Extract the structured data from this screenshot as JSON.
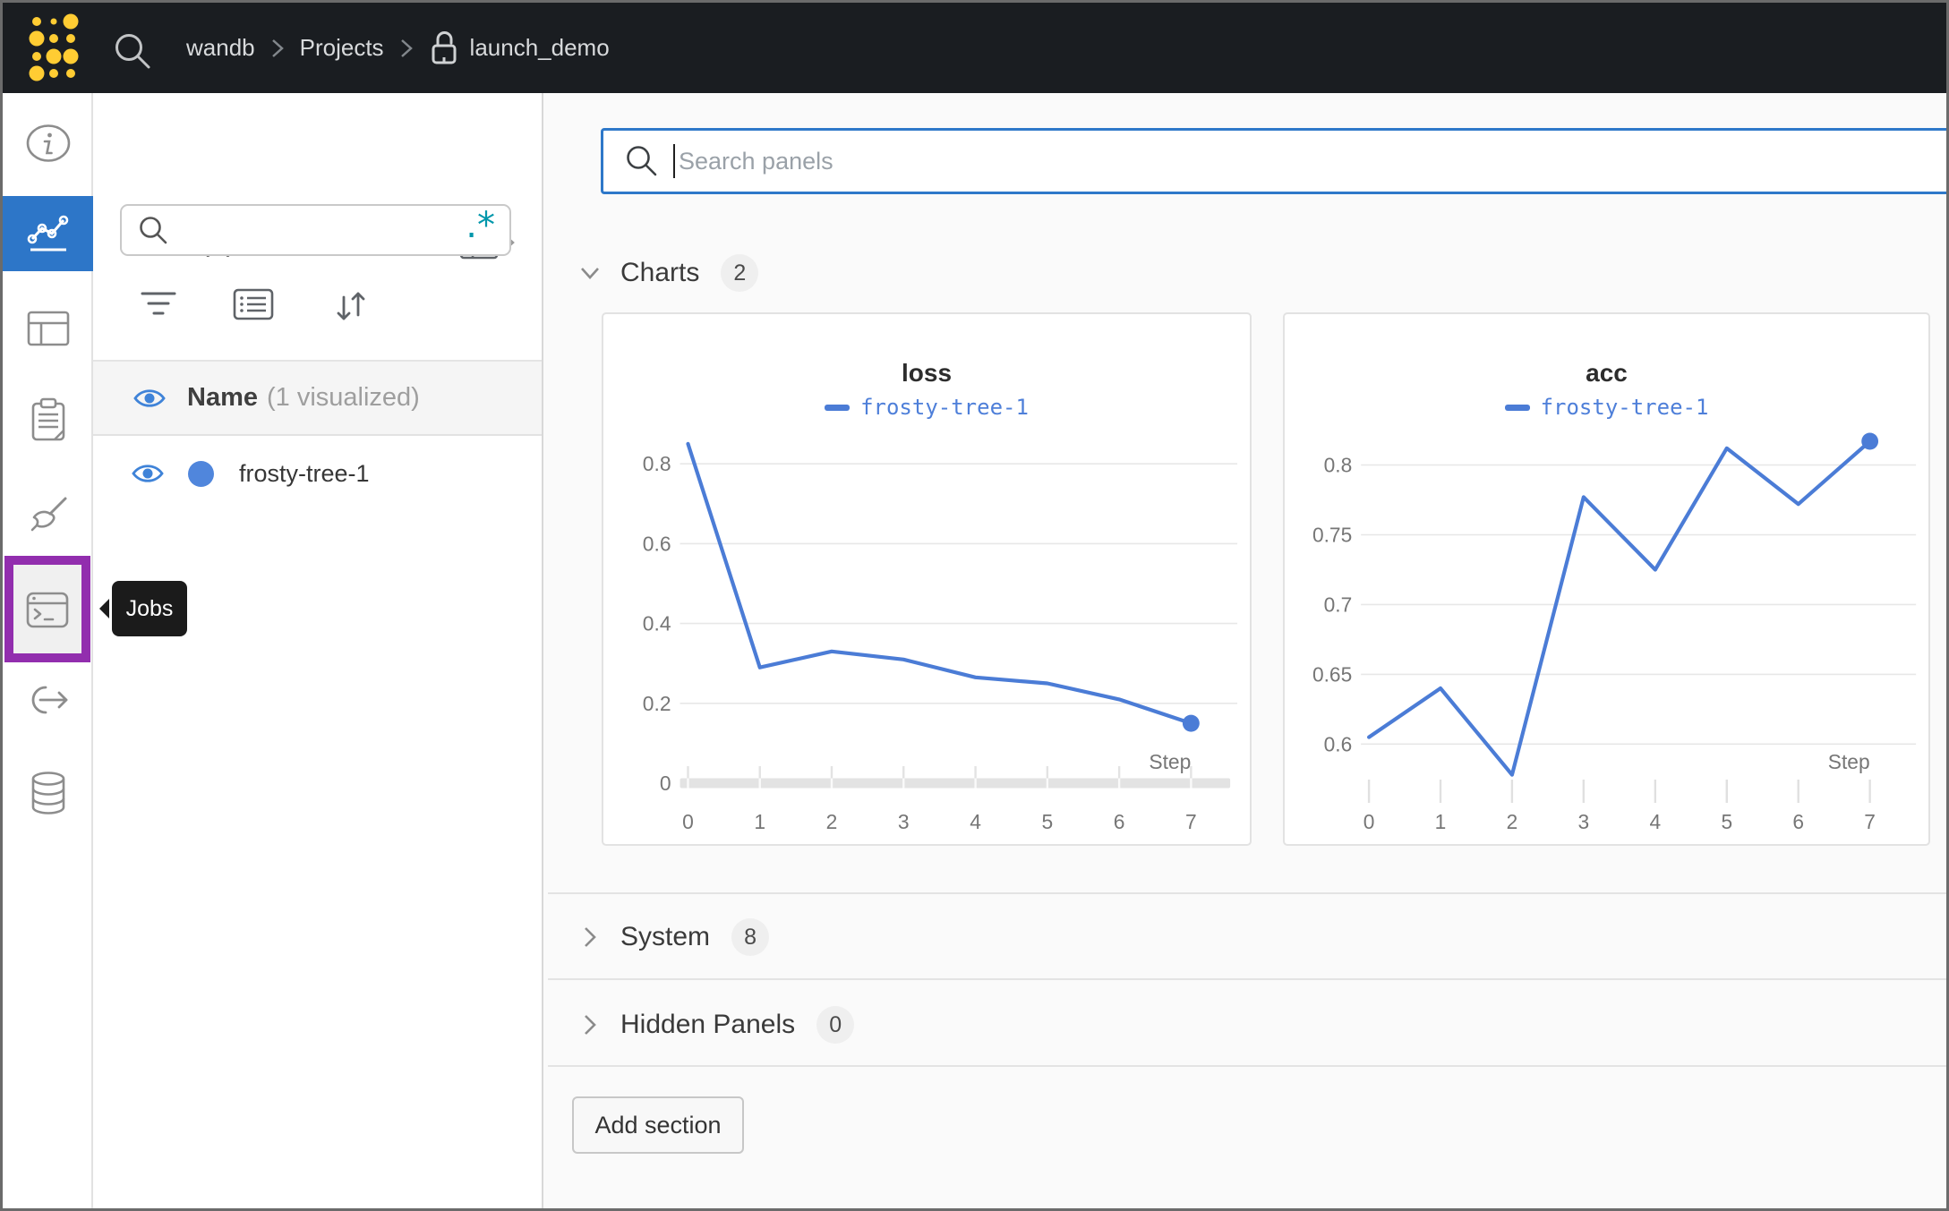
{
  "colors": {
    "topbar_bg": "#1a1d21",
    "accent_blue": "#2d76c8",
    "chart_line": "#4b7cd6",
    "highlight_purple": "#922eae",
    "regex_teal": "#0097ab",
    "logo_yellow": "#ffcc33"
  },
  "topbar": {
    "breadcrumb": {
      "items": [
        "wandb",
        "Projects",
        "launch_demo"
      ]
    }
  },
  "sidebar": {
    "items": [
      {
        "icon": "info-icon",
        "selected": false
      },
      {
        "icon": "line-chart-icon",
        "selected": true
      },
      {
        "icon": "table-icon",
        "selected": false
      },
      {
        "icon": "clipboard-icon",
        "selected": false
      },
      {
        "icon": "broom-icon",
        "selected": false
      },
      {
        "icon": "jobs-terminal-icon",
        "selected": false,
        "highlighted": true
      },
      {
        "icon": "curved-arrow-icon",
        "selected": false
      },
      {
        "icon": "database-icon",
        "selected": false
      }
    ],
    "tooltip": {
      "text": "Jobs"
    }
  },
  "runs_panel": {
    "title": "Runs (1)",
    "search": {
      "value": "",
      "placeholder": ""
    },
    "regex_glyph": ".*",
    "header": {
      "name": "Name",
      "visualized": "(1 visualized)"
    },
    "runs": [
      {
        "name": "frosty-tree-1"
      }
    ]
  },
  "main": {
    "search": {
      "value": "",
      "placeholder": "Search panels"
    },
    "sections": [
      {
        "label": "Charts",
        "count": "2",
        "expanded": true
      },
      {
        "label": "System",
        "count": "8",
        "expanded": false
      },
      {
        "label": "Hidden Panels",
        "count": "0",
        "expanded": false
      }
    ],
    "add_section_label": "Add section"
  },
  "chart_data": [
    {
      "type": "line",
      "title": "loss",
      "legend": "frosty-tree-1",
      "xlabel": "Step",
      "x": [
        0,
        1,
        2,
        3,
        4,
        5,
        6,
        7
      ],
      "values": [
        0.85,
        0.29,
        0.33,
        0.31,
        0.265,
        0.25,
        0.21,
        0.15
      ],
      "yticks": [
        0,
        0.2,
        0.4,
        0.6,
        0.8
      ],
      "ylim": [
        0,
        0.888
      ],
      "xlim": [
        0,
        7
      ],
      "baseline": true,
      "end_dot": true,
      "grid": true,
      "legend_position": "top"
    },
    {
      "type": "line",
      "title": "acc",
      "legend": "frosty-tree-1",
      "xlabel": "Step",
      "x": [
        0,
        1,
        2,
        3,
        4,
        5,
        6,
        7
      ],
      "values": [
        0.605,
        0.64,
        0.578,
        0.777,
        0.725,
        0.812,
        0.772,
        0.817
      ],
      "yticks": [
        0.6,
        0.65,
        0.7,
        0.75,
        0.8
      ],
      "ylim": [
        0.572,
        0.826
      ],
      "xlim": [
        0,
        7
      ],
      "baseline": false,
      "end_dot": true,
      "grid": true,
      "legend_position": "top"
    }
  ]
}
